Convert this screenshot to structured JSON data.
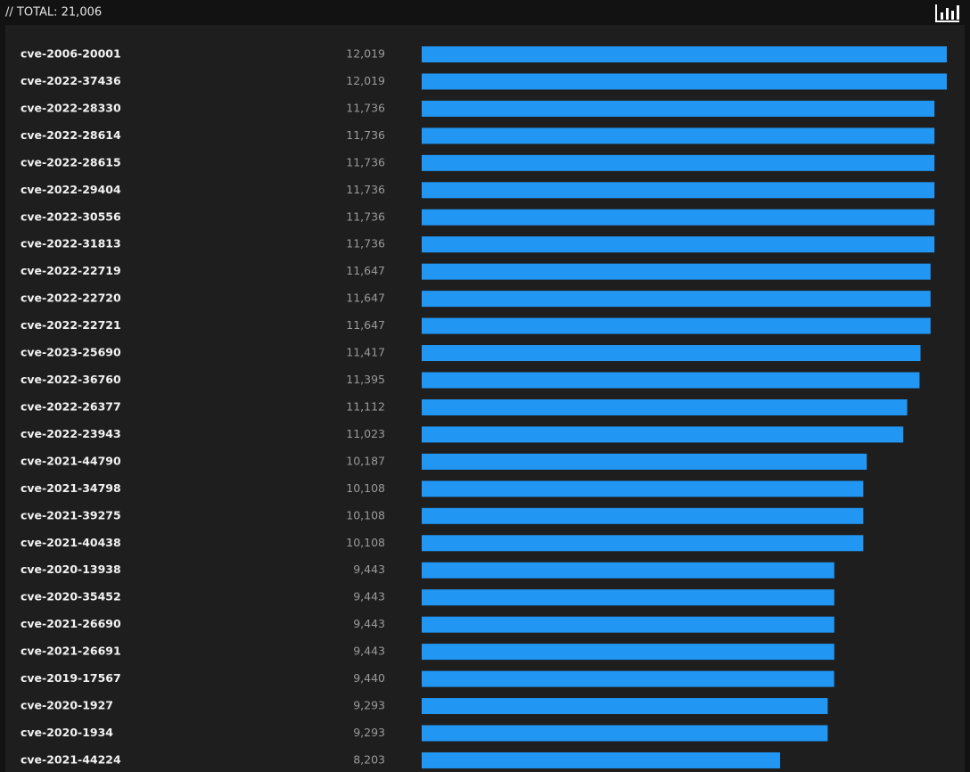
{
  "header": {
    "title": "// TOTAL: 21,006"
  },
  "chart_data": {
    "type": "bar",
    "orientation": "horizontal",
    "color": "#2196f3",
    "categories": [
      "cve-2006-20001",
      "cve-2022-37436",
      "cve-2022-28330",
      "cve-2022-28614",
      "cve-2022-28615",
      "cve-2022-29404",
      "cve-2022-30556",
      "cve-2022-31813",
      "cve-2022-22719",
      "cve-2022-22720",
      "cve-2022-22721",
      "cve-2023-25690",
      "cve-2022-36760",
      "cve-2022-26377",
      "cve-2022-23943",
      "cve-2021-44790",
      "cve-2021-34798",
      "cve-2021-39275",
      "cve-2021-40438",
      "cve-2020-13938",
      "cve-2020-35452",
      "cve-2021-26690",
      "cve-2021-26691",
      "cve-2019-17567",
      "cve-2020-1927",
      "cve-2020-1934",
      "cve-2021-44224"
    ],
    "values": [
      12019,
      12019,
      11736,
      11736,
      11736,
      11736,
      11736,
      11736,
      11647,
      11647,
      11647,
      11417,
      11395,
      11112,
      11023,
      10187,
      10108,
      10108,
      10108,
      9443,
      9443,
      9443,
      9443,
      9440,
      9293,
      9293,
      8203
    ],
    "value_labels": [
      "12,019",
      "12,019",
      "11,736",
      "11,736",
      "11,736",
      "11,736",
      "11,736",
      "11,736",
      "11,647",
      "11,647",
      "11,647",
      "11,417",
      "11,395",
      "11,112",
      "11,023",
      "10,187",
      "10,108",
      "10,108",
      "10,108",
      "9,443",
      "9,443",
      "9,443",
      "9,443",
      "9,440",
      "9,293",
      "9,293",
      "8,203"
    ],
    "xlim": [
      0,
      12019
    ]
  }
}
